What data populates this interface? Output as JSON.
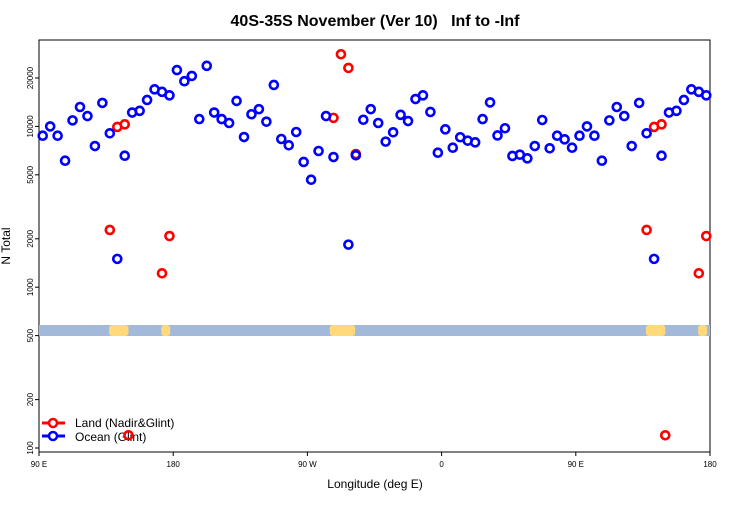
{
  "chart_data": {
    "type": "scatter",
    "title": "40S-35S November (Ver 10)   Inf to -Inf",
    "xlabel": "Longitude (deg E)",
    "ylabel": "N Total",
    "y_scale": "log",
    "ylim": [
      100,
      40000
    ],
    "xlim_description": "90 E eastward through 180, 0, to 180 (450 degrees, data repeated after one full revolution)",
    "x_ticks": [
      {
        "lon": 90,
        "label": "90 E"
      },
      {
        "lon": 180,
        "label": "180"
      },
      {
        "lon": -90,
        "label": "90 W"
      },
      {
        "lon": 0,
        "label": "0"
      },
      {
        "lon": 90,
        "label": "90 E",
        "wrap": true
      },
      {
        "lon": 180,
        "label": "180",
        "wrap": true
      }
    ],
    "y_ticks": [
      100,
      200,
      500,
      1000,
      2000,
      5000,
      10000,
      20000
    ],
    "grid": false,
    "legend_position": "bottom-left",
    "series": [
      {
        "name": "Land (Nadir&Glint)",
        "color": "#ff0000",
        "lon": [
          137.5,
          142.5,
          147.5,
          150,
          172.5,
          177.5,
          -72.5,
          -67.5,
          -62.5,
          -57.5
        ],
        "values": [
          2270,
          9920,
          10300,
          120,
          1220,
          2080,
          11300,
          28100,
          23100,
          6730
        ]
      },
      {
        "name": "Ocean (Glint)",
        "color": "#0000ff",
        "lon": [
          92.5,
          97.5,
          102.5,
          107.5,
          112.5,
          117.5,
          122.5,
          127.5,
          132.5,
          137.5,
          142.5,
          147.5,
          152.5,
          157.5,
          162.5,
          167.5,
          172.5,
          177.5,
          -177.5,
          -172.5,
          -167.5,
          -162.5,
          -157.5,
          -152.5,
          -147.5,
          -142.5,
          -137.5,
          -132.5,
          -127.5,
          -122.5,
          -117.5,
          -112.5,
          -107.5,
          -102.5,
          -97.5,
          -92.5,
          -87.5,
          -82.5,
          -77.5,
          -72.5,
          -67.5,
          -62.5,
          -57.5,
          -52.5,
          -47.5,
          -42.5,
          -37.5,
          -32.5,
          -27.5,
          -22.5,
          -17.5,
          -12.5,
          -7.5,
          -2.5,
          2.5,
          7.5,
          12.5,
          17.5,
          22.5,
          27.5,
          32.5,
          37.5,
          42.5,
          47.5,
          52.5,
          57.5,
          62.5,
          67.5,
          72.5,
          77.5,
          82.5,
          87.5
        ],
        "values": [
          8750,
          10000,
          8750,
          6120,
          10900,
          13200,
          11600,
          7550,
          14000,
          9060,
          1500,
          6570,
          12200,
          12500,
          14600,
          17000,
          16400,
          15600,
          22400,
          19100,
          20600,
          11100,
          23800,
          12200,
          11100,
          10500,
          14400,
          8590,
          11900,
          12800,
          10700,
          18100,
          8350,
          7630,
          9230,
          6010,
          4660,
          7030,
          11600,
          6450,
          null,
          1840,
          6610,
          11000,
          12800,
          10500,
          8040,
          9190,
          11800,
          10800,
          14800,
          15600,
          12300,
          6860,
          9590,
          7370,
          8560,
          8150,
          7960,
          11100,
          14100,
          8780,
          9740,
          6550,
          6670,
          6330,
          7550,
          10960,
          7310,
          8750,
          8310,
          7370
        ]
      }
    ],
    "map_strip": {
      "ocean_color": "#a3b9d9",
      "land_color": "#ffd97a",
      "land_ranges_lon": [
        [
          137,
          150
        ],
        [
          172,
          178
        ],
        [
          -75,
          -58
        ]
      ]
    }
  }
}
